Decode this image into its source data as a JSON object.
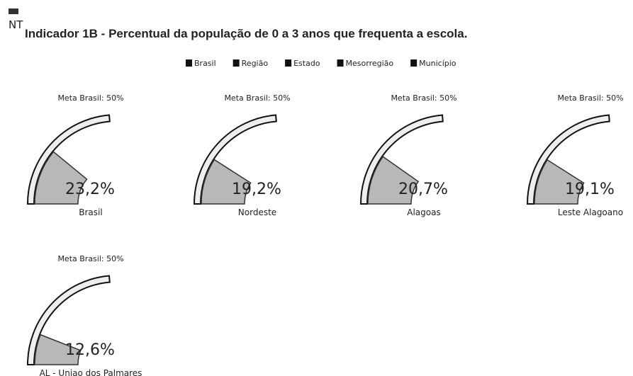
{
  "chart_data": {
    "type": "gauge",
    "icon_label": "NT",
    "title": "Indicador 1B - Percentual da população de 0 a 3 anos que frequenta a escola.",
    "legend": [
      "Brasil",
      "Região",
      "Estado",
      "Mesorregião",
      "Município"
    ],
    "target_label": "Meta Brasil: 50%",
    "target": 50,
    "categories": [
      "Brasil",
      "Nordeste",
      "Alagoas",
      "Leste Alagoano",
      "AL - Uniao dos Palmares"
    ],
    "values": [
      23.2,
      19.2,
      20.7,
      19.1,
      12.6
    ],
    "value_labels": [
      "23,2%",
      "19,2%",
      "20,7%",
      "19,1%",
      "12,6%"
    ],
    "color": "#b8b8b8"
  }
}
